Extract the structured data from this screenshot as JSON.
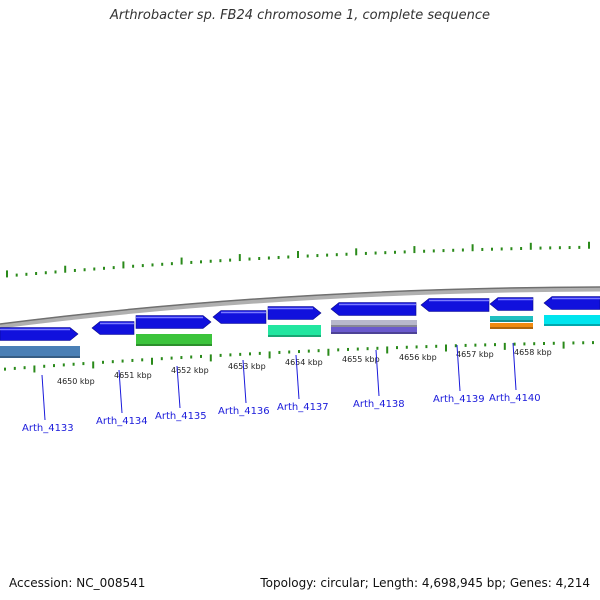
{
  "title": "Arthrobacter sp. FB24 chromosome 1, complete sequence",
  "footer": {
    "accession": "Accession: NC_008541",
    "topology": "Topology: circular; Length: 4,698,945 bp; Genes: 4,214"
  },
  "kbp_labels": [
    "4650 kbp",
    "4651 kbp",
    "4652 kbp",
    "4653 kbp",
    "4654 kbp",
    "4655 kbp",
    "4656 kbp",
    "4657 kbp",
    "4658 kbp"
  ],
  "genes": [
    {
      "name": "Arth_4133",
      "strand": "+",
      "band_color": "#4a7fb5"
    },
    {
      "name": "Arth_4134",
      "strand": "-",
      "band_color": ""
    },
    {
      "name": "Arth_4135",
      "strand": "+",
      "band_color": "#3cc43c"
    },
    {
      "name": "Arth_4136",
      "strand": "-",
      "band_color": ""
    },
    {
      "name": "Arth_4137",
      "strand": "+",
      "band_color": "#22e6a0"
    },
    {
      "name": "Arth_4138",
      "strand": "-",
      "band_color": "#b8b8cc"
    },
    {
      "name": "Arth_4139",
      "strand": "-",
      "band_color": ""
    },
    {
      "name": "Arth_4140",
      "strand": "-",
      "band_color": "#20c0c0"
    }
  ],
  "colors": {
    "gene_arrow": "#1111dd",
    "tick": "#2a8a1a",
    "backbone": "#888888",
    "label": "#1a1adb",
    "extra_band_orange": "#f08a10",
    "extra_band_cyan": "#00e5ee"
  }
}
